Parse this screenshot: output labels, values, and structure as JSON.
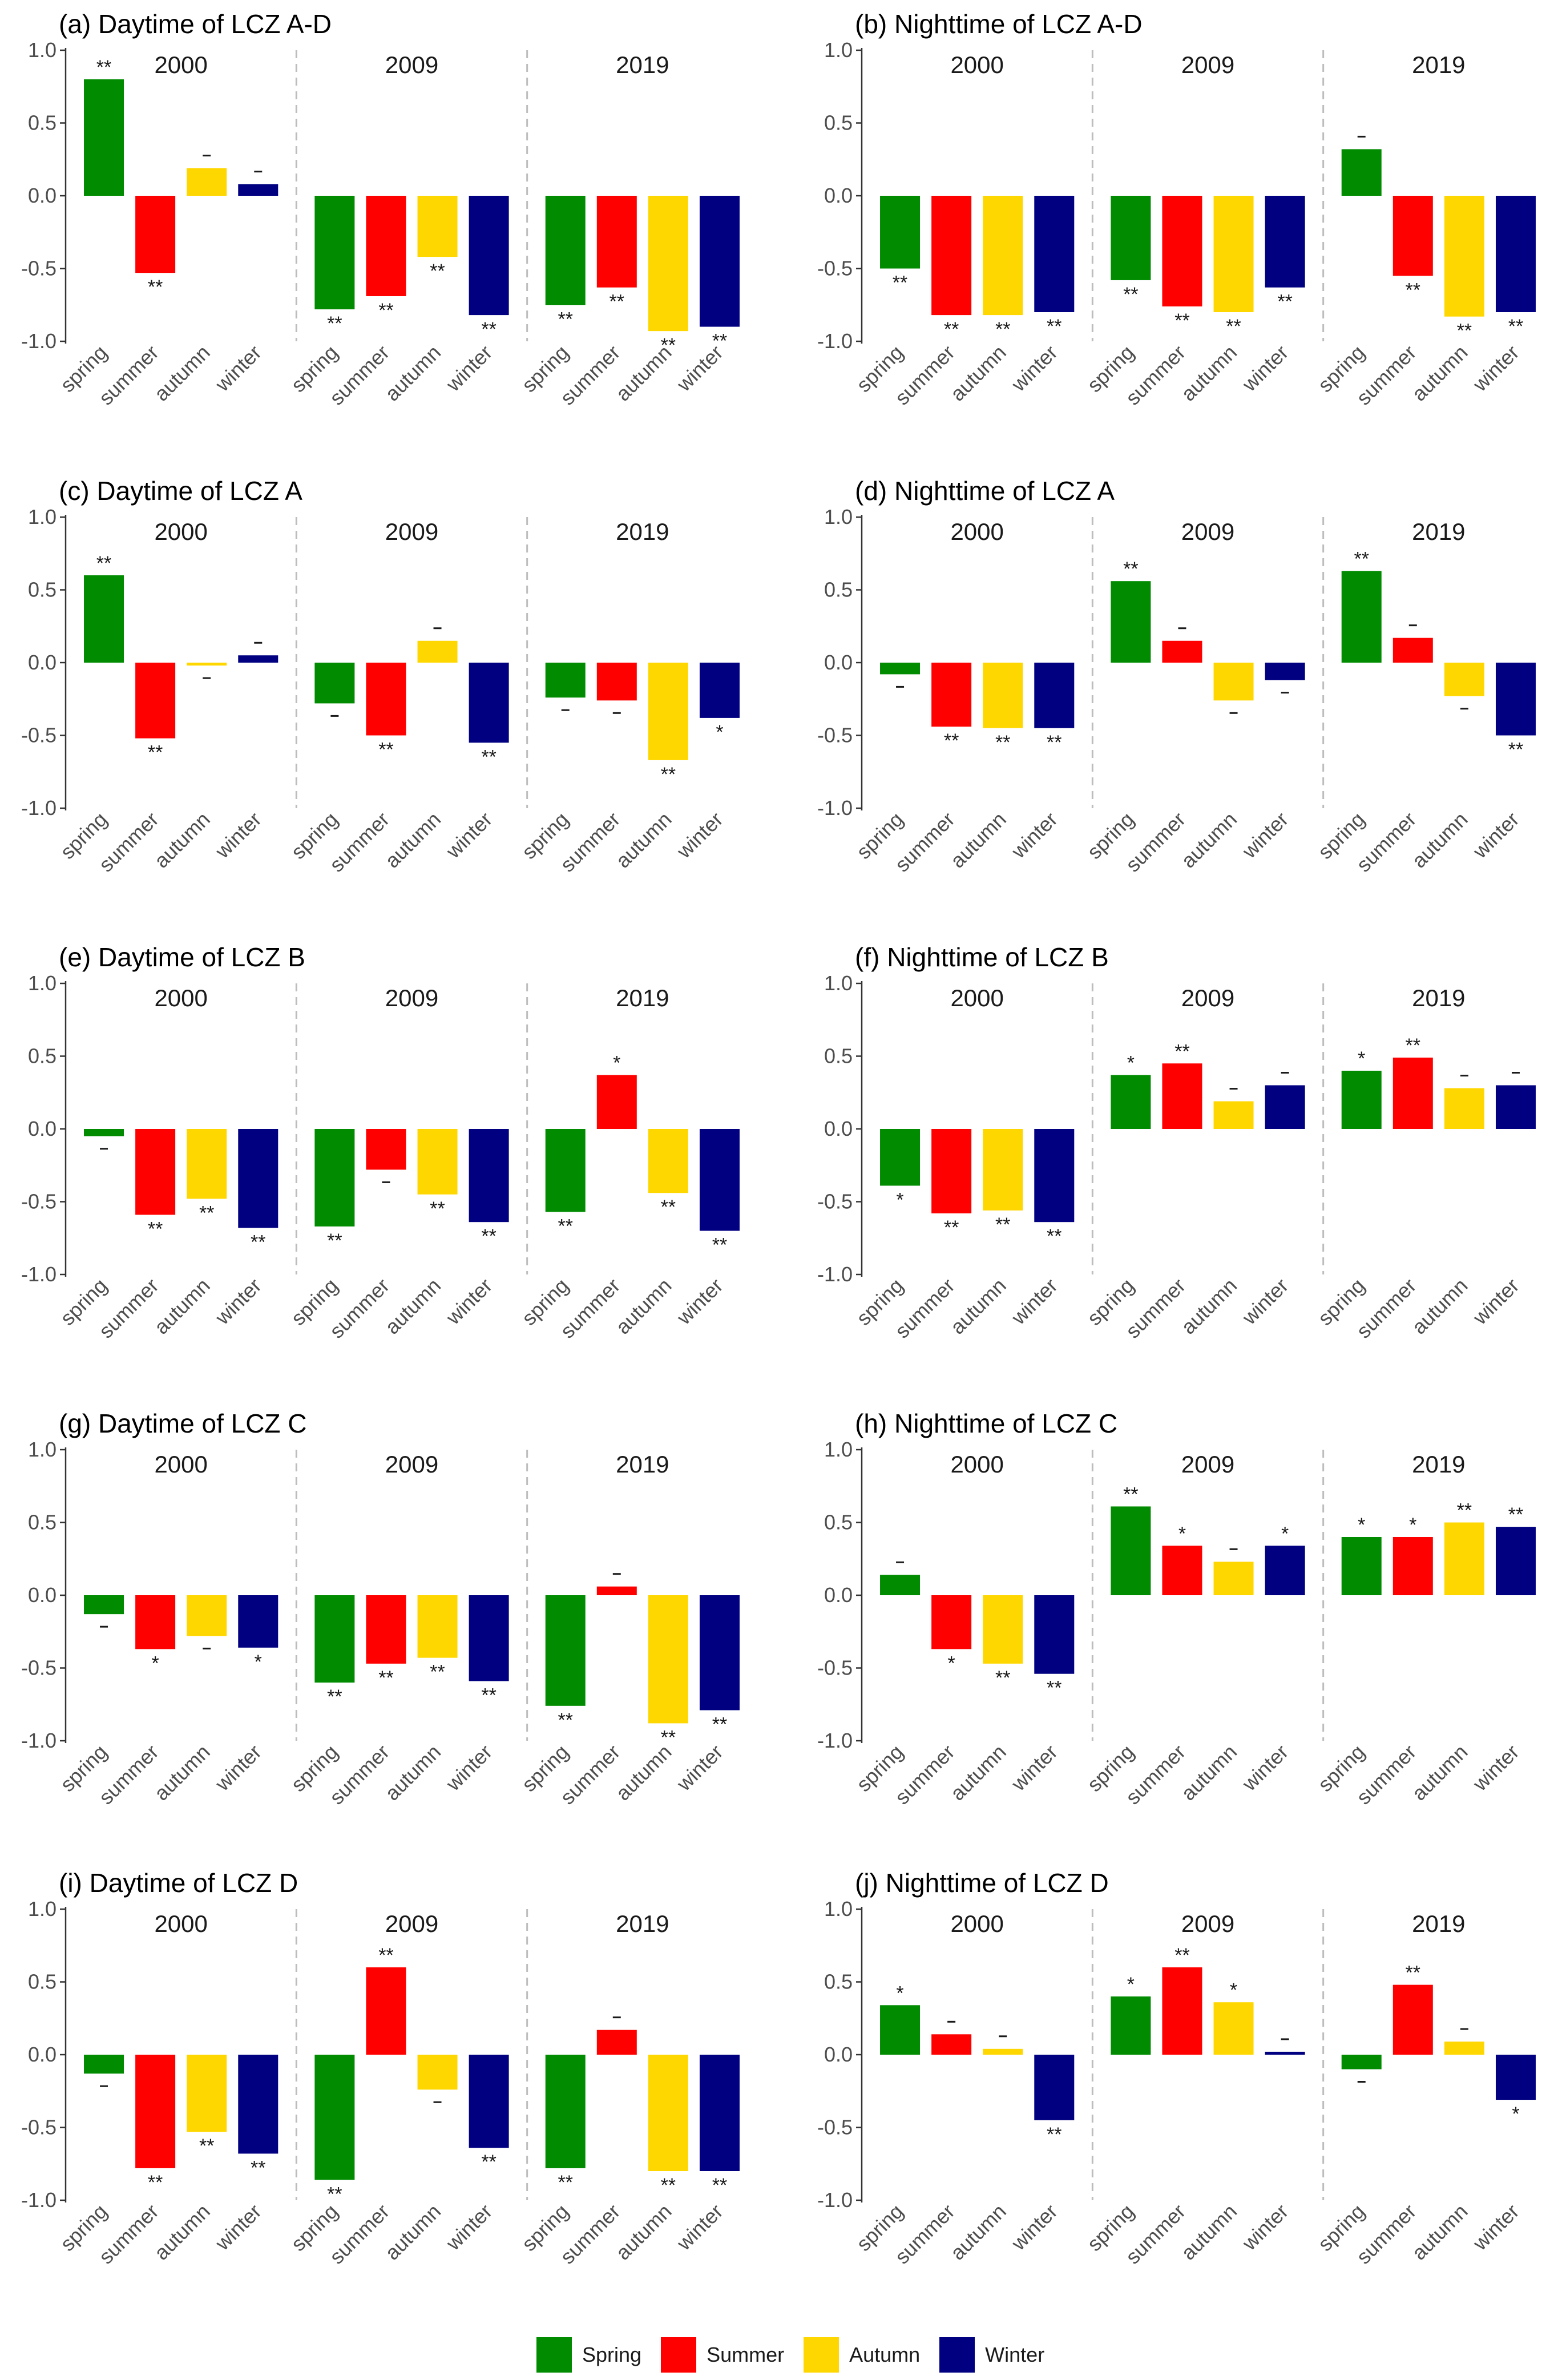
{
  "colors": {
    "spring": "#008B00",
    "summer": "#FF0000",
    "autumn": "#FFD700",
    "winter": "#000080"
  },
  "legend": [
    {
      "label": "Spring",
      "color": "#008B00"
    },
    {
      "label": "Summer",
      "color": "#FF0000"
    },
    {
      "label": "Autumn",
      "color": "#FFD700"
    },
    {
      "label": "Winter",
      "color": "#000080"
    }
  ],
  "chart_data": [
    {
      "id": "a",
      "type": "bar",
      "title": "(a) Daytime of LCZ A-D",
      "ylim": [
        -1.0,
        1.0
      ],
      "yticks": [
        "1.0",
        "0.5",
        "0.0",
        "-0.5",
        "-1.0"
      ],
      "categories": [
        "spring",
        "summer",
        "autumn",
        "winter"
      ],
      "groups": [
        {
          "year": "2000",
          "values": [
            0.8,
            -0.53,
            0.19,
            0.08
          ],
          "sig": [
            "**",
            "**",
            "-",
            "-"
          ]
        },
        {
          "year": "2009",
          "values": [
            -0.78,
            -0.69,
            -0.42,
            -0.82
          ],
          "sig": [
            "**",
            "**",
            "**",
            "**"
          ]
        },
        {
          "year": "2019",
          "values": [
            -0.75,
            -0.63,
            -0.93,
            -0.9
          ],
          "sig": [
            "**",
            "**",
            "**",
            "**"
          ]
        }
      ]
    },
    {
      "id": "b",
      "type": "bar",
      "title": "(b) Nighttime of LCZ A-D",
      "ylim": [
        -1.0,
        1.0
      ],
      "yticks": [
        "1.0",
        "0.5",
        "0.0",
        "-0.5",
        "-1.0"
      ],
      "categories": [
        "spring",
        "summer",
        "autumn",
        "winter"
      ],
      "groups": [
        {
          "year": "2000",
          "values": [
            -0.5,
            -0.82,
            -0.82,
            -0.8
          ],
          "sig": [
            "**",
            "**",
            "**",
            "**"
          ]
        },
        {
          "year": "2009",
          "values": [
            -0.58,
            -0.76,
            -0.8,
            -0.63
          ],
          "sig": [
            "**",
            "**",
            "**",
            "**"
          ]
        },
        {
          "year": "2019",
          "values": [
            0.32,
            -0.55,
            -0.83,
            -0.8
          ],
          "sig": [
            "-",
            "**",
            "**",
            "**"
          ]
        }
      ]
    },
    {
      "id": "c",
      "type": "bar",
      "title": "(c) Daytime of LCZ A",
      "ylim": [
        -1.0,
        1.0
      ],
      "yticks": [
        "1.0",
        "0.5",
        "0.0",
        "-0.5",
        "-1.0"
      ],
      "categories": [
        "spring",
        "summer",
        "autumn",
        "winter"
      ],
      "groups": [
        {
          "year": "2000",
          "values": [
            0.6,
            -0.52,
            -0.02,
            0.05
          ],
          "sig": [
            "**",
            "**",
            "-",
            "-"
          ]
        },
        {
          "year": "2009",
          "values": [
            -0.28,
            -0.5,
            0.15,
            -0.55
          ],
          "sig": [
            "-",
            "**",
            "-",
            "**"
          ]
        },
        {
          "year": "2019",
          "values": [
            -0.24,
            -0.26,
            -0.67,
            -0.38
          ],
          "sig": [
            "-",
            "-",
            "**",
            "*"
          ]
        }
      ]
    },
    {
      "id": "d",
      "type": "bar",
      "title": "(d) Nighttime of LCZ A",
      "ylim": [
        -1.0,
        1.0
      ],
      "yticks": [
        "1.0",
        "0.5",
        "0.0",
        "-0.5",
        "-1.0"
      ],
      "categories": [
        "spring",
        "summer",
        "autumn",
        "winter"
      ],
      "groups": [
        {
          "year": "2000",
          "values": [
            -0.08,
            -0.44,
            -0.45,
            -0.45
          ],
          "sig": [
            "-",
            "**",
            "**",
            "**"
          ]
        },
        {
          "year": "2009",
          "values": [
            0.56,
            0.15,
            -0.26,
            -0.12
          ],
          "sig": [
            "**",
            "-",
            "-",
            "-"
          ]
        },
        {
          "year": "2019",
          "values": [
            0.63,
            0.17,
            -0.23,
            -0.5
          ],
          "sig": [
            "**",
            "-",
            "-",
            "**"
          ]
        }
      ]
    },
    {
      "id": "e",
      "type": "bar",
      "title": "(e) Daytime of LCZ B",
      "ylim": [
        -1.0,
        1.0
      ],
      "yticks": [
        "1.0",
        "0.5",
        "0.0",
        "-0.5",
        "-1.0"
      ],
      "categories": [
        "spring",
        "summer",
        "autumn",
        "winter"
      ],
      "groups": [
        {
          "year": "2000",
          "values": [
            -0.05,
            -0.59,
            -0.48,
            -0.68
          ],
          "sig": [
            "-",
            "**",
            "**",
            "**"
          ]
        },
        {
          "year": "2009",
          "values": [
            -0.67,
            -0.28,
            -0.45,
            -0.64
          ],
          "sig": [
            "**",
            "-",
            "**",
            "**"
          ]
        },
        {
          "year": "2019",
          "values": [
            -0.57,
            0.37,
            -0.44,
            -0.7
          ],
          "sig": [
            "**",
            "*",
            "**",
            "**"
          ]
        }
      ]
    },
    {
      "id": "f",
      "type": "bar",
      "title": "(f) Nighttime of LCZ B",
      "ylim": [
        -1.0,
        1.0
      ],
      "yticks": [
        "1.0",
        "0.5",
        "0.0",
        "-0.5",
        "-1.0"
      ],
      "categories": [
        "spring",
        "summer",
        "autumn",
        "winter"
      ],
      "groups": [
        {
          "year": "2000",
          "values": [
            -0.39,
            -0.58,
            -0.56,
            -0.64
          ],
          "sig": [
            "*",
            "**",
            "**",
            "**"
          ]
        },
        {
          "year": "2009",
          "values": [
            0.37,
            0.45,
            0.19,
            0.3
          ],
          "sig": [
            "*",
            "**",
            "-",
            "-"
          ]
        },
        {
          "year": "2019",
          "values": [
            0.4,
            0.49,
            0.28,
            0.3
          ],
          "sig": [
            "*",
            "**",
            "-",
            "-"
          ]
        }
      ]
    },
    {
      "id": "g",
      "type": "bar",
      "title": "(g) Daytime of LCZ C",
      "ylim": [
        -1.0,
        1.0
      ],
      "yticks": [
        "1.0",
        "0.5",
        "0.0",
        "-0.5",
        "-1.0"
      ],
      "categories": [
        "spring",
        "summer",
        "autumn",
        "winter"
      ],
      "groups": [
        {
          "year": "2000",
          "values": [
            -0.13,
            -0.37,
            -0.28,
            -0.36
          ],
          "sig": [
            "-",
            "*",
            "-",
            "*"
          ]
        },
        {
          "year": "2009",
          "values": [
            -0.6,
            -0.47,
            -0.43,
            -0.59
          ],
          "sig": [
            "**",
            "**",
            "**",
            "**"
          ]
        },
        {
          "year": "2019",
          "values": [
            -0.76,
            0.06,
            -0.88,
            -0.79
          ],
          "sig": [
            "**",
            "-",
            "**",
            "**"
          ]
        }
      ]
    },
    {
      "id": "h",
      "type": "bar",
      "title": "(h) Nighttime of LCZ C",
      "ylim": [
        -1.0,
        1.0
      ],
      "yticks": [
        "1.0",
        "0.5",
        "0.0",
        "-0.5",
        "-1.0"
      ],
      "categories": [
        "spring",
        "summer",
        "autumn",
        "winter"
      ],
      "groups": [
        {
          "year": "2000",
          "values": [
            0.14,
            -0.37,
            -0.47,
            -0.54
          ],
          "sig": [
            "-",
            "*",
            "**",
            "**"
          ]
        },
        {
          "year": "2009",
          "values": [
            0.61,
            0.34,
            0.23,
            0.34
          ],
          "sig": [
            "**",
            "*",
            "-",
            "*"
          ]
        },
        {
          "year": "2019",
          "values": [
            0.4,
            0.4,
            0.5,
            0.47
          ],
          "sig": [
            "*",
            "*",
            "**",
            "**"
          ]
        }
      ]
    },
    {
      "id": "i",
      "type": "bar",
      "title": "(i) Daytime of LCZ D",
      "ylim": [
        -1.0,
        1.0
      ],
      "yticks": [
        "1.0",
        "0.5",
        "0.0",
        "-0.5",
        "-1.0"
      ],
      "categories": [
        "spring",
        "summer",
        "autumn",
        "winter"
      ],
      "groups": [
        {
          "year": "2000",
          "values": [
            -0.13,
            -0.78,
            -0.53,
            -0.68
          ],
          "sig": [
            "-",
            "**",
            "**",
            "**"
          ]
        },
        {
          "year": "2009",
          "values": [
            -0.86,
            0.6,
            -0.24,
            -0.64
          ],
          "sig": [
            "**",
            "**",
            "-",
            "**"
          ]
        },
        {
          "year": "2019",
          "values": [
            -0.78,
            0.17,
            -0.8,
            -0.8
          ],
          "sig": [
            "**",
            "-",
            "**",
            "**"
          ]
        }
      ]
    },
    {
      "id": "j",
      "type": "bar",
      "title": "(j) Nighttime of LCZ D",
      "ylim": [
        -1.0,
        1.0
      ],
      "yticks": [
        "1.0",
        "0.5",
        "0.0",
        "-0.5",
        "-1.0"
      ],
      "categories": [
        "spring",
        "summer",
        "autumn",
        "winter"
      ],
      "groups": [
        {
          "year": "2000",
          "values": [
            0.34,
            0.14,
            0.04,
            -0.45
          ],
          "sig": [
            "*",
            "-",
            "-",
            "**"
          ]
        },
        {
          "year": "2009",
          "values": [
            0.4,
            0.6,
            0.36,
            0.02
          ],
          "sig": [
            "*",
            "**",
            "*",
            "-"
          ]
        },
        {
          "year": "2019",
          "values": [
            -0.1,
            0.48,
            0.09,
            -0.31
          ],
          "sig": [
            "-",
            "**",
            "-",
            "*"
          ]
        }
      ]
    }
  ]
}
